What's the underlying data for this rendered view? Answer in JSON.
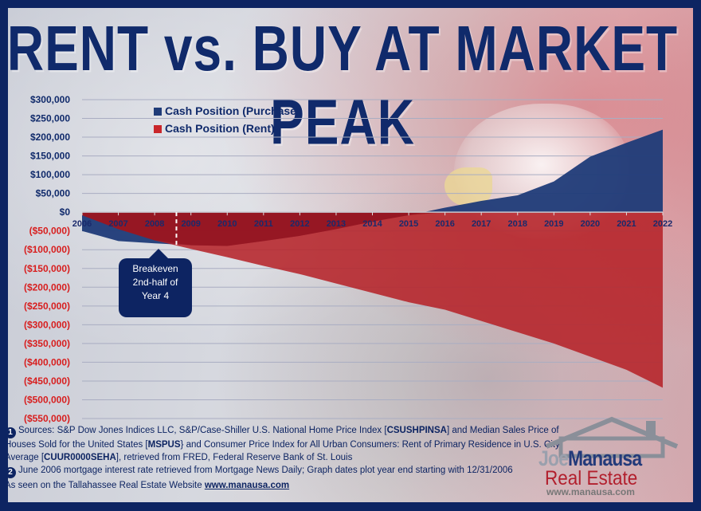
{
  "title": "RENT vs. BUY AT MARKET PEAK",
  "colors": {
    "purchase": "#1f3b78",
    "rent": "#b51f24",
    "negative_label": "#d81e1e",
    "positive_label": "#102a6b",
    "frame": "#0d2462"
  },
  "chart_data": {
    "type": "area",
    "title": "RENT vs. BUY AT MARKET PEAK",
    "x": [
      2006,
      2007,
      2008,
      2009,
      2010,
      2011,
      2012,
      2013,
      2014,
      2015,
      2016,
      2017,
      2018,
      2019,
      2020,
      2021,
      2022
    ],
    "x_tick_labels": [
      "2006",
      "2007",
      "2008",
      "2009",
      "2010",
      "2011",
      "2012",
      "2013",
      "2014",
      "2015",
      "2016",
      "2017",
      "2018",
      "2019",
      "2020",
      "2021",
      "2022"
    ],
    "y_tick_labels": [
      "$300,000",
      "$250,000",
      "$200,000",
      "$150,000",
      "$100,000",
      "$50,000",
      "$0",
      "($50,000)",
      "($100,000)",
      "($150,000)",
      "($200,000)",
      "($250,000)",
      "($300,000)",
      "($350,000)",
      "($400,000)",
      "($450,000)",
      "($500,000)",
      "($550,000)"
    ],
    "y_ticks": [
      300000,
      250000,
      200000,
      150000,
      100000,
      50000,
      0,
      -50000,
      -100000,
      -150000,
      -200000,
      -250000,
      -300000,
      -350000,
      -400000,
      -450000,
      -500000,
      -550000
    ],
    "ylim": [
      -550000,
      300000
    ],
    "grid": true,
    "legend_position": "top-left",
    "series": [
      {
        "name": "Cash Position (Purchase)",
        "values": [
          -50000,
          -77000,
          -83000,
          -88000,
          -90000,
          -77000,
          -63000,
          -45000,
          -25000,
          -8000,
          12000,
          30000,
          45000,
          82000,
          148000,
          185000,
          220000
        ]
      },
      {
        "name": "Cash Position (Rent)",
        "values": [
          -8000,
          -45000,
          -75000,
          -98000,
          -120000,
          -143000,
          -165000,
          -190000,
          -215000,
          -240000,
          -260000,
          -290000,
          -320000,
          -350000,
          -385000,
          -420000,
          -468000
        ]
      }
    ],
    "annotations": [
      {
        "x": 2008.6,
        "lines": [
          "Breakeven",
          "2nd-half of",
          "Year 4"
        ]
      }
    ]
  },
  "sources": {
    "line1_prefix": "Sources: S&P Dow Jones Indices LLC, S&P/Case-Shiller U.S. National Home Price Index [",
    "code1": "CSUSHPINSA",
    "line1_mid": "] and Median Sales Price of Houses Sold for the United States [",
    "code2": "MSPUS",
    "line1_mid2": "} and Consumer Price Index for All Urban Consumers: Rent of Primary Residence in U.S. City Average [",
    "code3": "CUUR0000SEHA",
    "line1_suffix": "], retrieved from FRED, Federal Reserve Bank of St. Louis",
    "line2": "June 2006 mortgage interest rate retrieved from Mortgage News Daily; Graph dates plot year end starting with 12/31/2006",
    "num1": "1",
    "num2": "2"
  },
  "footer": {
    "as_seen": "As seen on the Tallahassee Real Estate Website ",
    "link": "www.manausa.com"
  },
  "logo": {
    "joe": "Joe",
    "manausa": "Manausa",
    "real_estate": "Real Estate",
    "url": "www.manausa.com"
  }
}
